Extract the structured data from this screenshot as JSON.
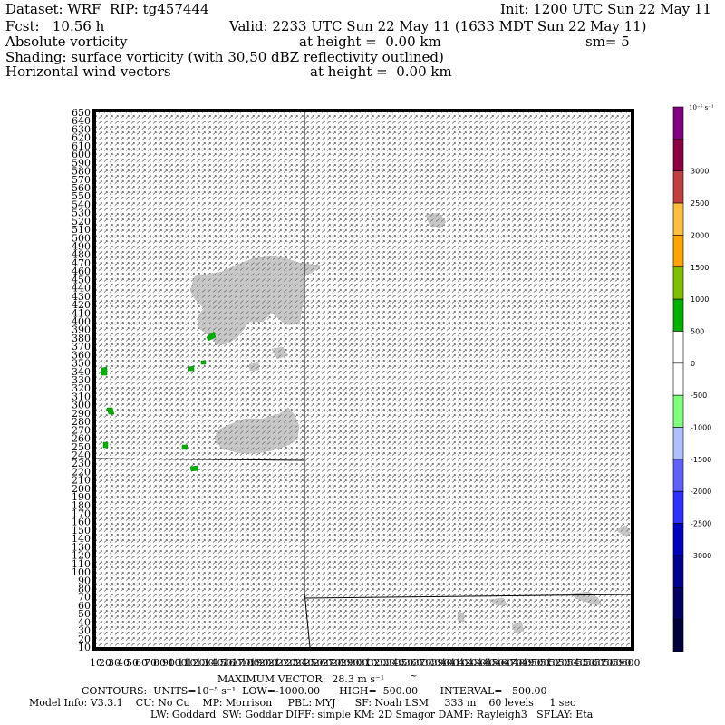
{
  "header": {
    "dataset": "Dataset: WRF  RIP: tg457444",
    "init": "Init: 1200 UTC Sun 22 May 11",
    "fcst": "Fcst:   10.56 h",
    "valid": "Valid: 2233 UTC Sun 22 May 11 (1633 MDT Sun 22 May 11)",
    "field": "Absolute vorticity",
    "field_height": "at height =  0.00 km",
    "smoothing": "sm= 5",
    "shading": "Shading: surface vorticity (with 30,50 dBZ reflectivity outlined)",
    "vectors": "Horizontal wind vectors",
    "vectors_height": "at height =  0.00 km"
  },
  "footer": {
    "max_vector": "MAXIMUM VECTOR:  28.3 m s⁻¹",
    "contours": "CONTOURS:  UNITS=10⁻⁵ s⁻¹  LOW=-1000.00      HIGH=  500.00       INTERVAL=   500.00",
    "model_info": "Model Info: V3.3.1    CU: No Cu    MP: Morrison     PBL: MYJ      SF: Noah LSM     333 m    60 levels     1 sec",
    "physics": "LW: Goddard  SW: Goddar DIFF: simple KM: 2D Smagor DAMP: Rayleigh3   SFLAY: Eta"
  },
  "colorbar": {
    "unit_label": "10⁻⁵ s⁻¹",
    "ticks": [
      "3000",
      "2500",
      "2000",
      "1500",
      "1000",
      "500",
      "0",
      "-500",
      "-1000",
      "-1500",
      "-2000",
      "-2500",
      "-3000"
    ],
    "colors": [
      "#800080",
      "#8b0040",
      "#c04040",
      "#ffc040",
      "#ffa500",
      "#80c000",
      "#00b000",
      "#ffffff",
      "#ffffff",
      "#80ff80",
      "#b0c0ff",
      "#6060ff",
      "#3030ff",
      "#0000c0",
      "#000090",
      "#000060",
      "#00003a"
    ]
  },
  "chart_data": {
    "type": "heatmap",
    "y_ticks": [
      "10",
      "20",
      "30",
      "40",
      "50",
      "60",
      "70",
      "80",
      "90",
      "100",
      "110",
      "120",
      "130",
      "140",
      "150",
      "160",
      "170",
      "180",
      "190",
      "200",
      "210",
      "220",
      "230",
      "240",
      "250",
      "260",
      "270",
      "280",
      "290",
      "300",
      "310",
      "320",
      "330",
      "340",
      "350",
      "360",
      "370",
      "380",
      "390",
      "400",
      "410",
      "420",
      "430",
      "440",
      "450",
      "460",
      "470",
      "480",
      "490",
      "500",
      "510",
      "520",
      "530",
      "540",
      "550",
      "560",
      "570",
      "580",
      "590",
      "600",
      "610",
      "620",
      "630",
      "640",
      "650"
    ],
    "x_range": [
      10,
      600
    ],
    "y_range": [
      10,
      650
    ],
    "grid_spacing": 10,
    "vorticity_regions": [
      {
        "level": "-500",
        "color": "#c8c8c8",
        "points": [
          [
            215,
            305
          ],
          [
            245,
            300
          ],
          [
            262,
            292
          ],
          [
            280,
            285
          ],
          [
            300,
            283
          ],
          [
            315,
            285
          ],
          [
            330,
            290
          ],
          [
            345,
            292
          ],
          [
            355,
            293
          ],
          [
            345,
            300
          ],
          [
            335,
            305
          ],
          [
            335,
            330
          ],
          [
            330,
            358
          ],
          [
            315,
            358
          ],
          [
            300,
            345
          ],
          [
            290,
            355
          ],
          [
            275,
            355
          ],
          [
            262,
            372
          ],
          [
            250,
            380
          ],
          [
            240,
            380
          ],
          [
            230,
            370
          ],
          [
            220,
            362
          ],
          [
            218,
            350
          ],
          [
            225,
            340
          ],
          [
            215,
            330
          ],
          [
            210,
            320
          ]
        ]
      },
      {
        "level": "-500",
        "color": "#c8c8c8",
        "points": [
          [
            250,
            470
          ],
          [
            270,
            462
          ],
          [
            290,
            462
          ],
          [
            308,
            457
          ],
          [
            318,
            450
          ],
          [
            325,
            458
          ],
          [
            330,
            470
          ],
          [
            328,
            485
          ],
          [
            316,
            492
          ],
          [
            300,
            497
          ],
          [
            285,
            500
          ],
          [
            265,
            500
          ],
          [
            245,
            495
          ],
          [
            237,
            485
          ],
          [
            240,
            475
          ]
        ]
      },
      {
        "level": "-500",
        "color": "#c8c8c8",
        "points": [
          [
            470,
            237
          ],
          [
            485,
            235
          ],
          [
            492,
            245
          ],
          [
            485,
            252
          ],
          [
            474,
            248
          ]
        ]
      },
      {
        "level": "-500",
        "color": "#c8c8c8",
        "points": [
          [
            680,
            585
          ],
          [
            690,
            580
          ],
          [
            696,
            588
          ],
          [
            690,
            592
          ]
        ]
      },
      {
        "level": "-500",
        "color": "#c8c8c8",
        "points": [
          [
            630,
            655
          ],
          [
            650,
            653
          ],
          [
            660,
            660
          ],
          [
            664,
            668
          ],
          [
            650,
            665
          ],
          [
            635,
            660
          ]
        ]
      },
      {
        "level": "-500",
        "color": "#c8c8c8",
        "points": [
          [
            540,
            662
          ],
          [
            555,
            660
          ],
          [
            560,
            668
          ],
          [
            548,
            668
          ]
        ]
      },
      {
        "level": "-500",
        "color": "#c8c8c8",
        "points": [
          [
            505,
            675
          ],
          [
            512,
            677
          ],
          [
            512,
            686
          ],
          [
            505,
            684
          ]
        ]
      },
      {
        "level": "-500",
        "color": "#c8c8c8",
        "points": [
          [
            565,
            690
          ],
          [
            575,
            686
          ],
          [
            578,
            696
          ],
          [
            568,
            698
          ]
        ]
      },
      {
        "level": "-500",
        "color": "#c8c8c8",
        "points": [
          [
            300,
            385
          ],
          [
            312,
            383
          ],
          [
            318,
            392
          ],
          [
            306,
            396
          ]
        ]
      },
      {
        "level": "-500",
        "color": "#c8c8c8",
        "points": [
          [
            275,
            402
          ],
          [
            285,
            400
          ],
          [
            286,
            408
          ],
          [
            276,
            409
          ]
        ]
      }
    ],
    "reflectivity_cells": [
      {
        "color": "#00b000",
        "points": [
          [
            228,
            372
          ],
          [
            236,
            366
          ],
          [
            238,
            372
          ],
          [
            230,
            376
          ]
        ]
      },
      {
        "color": "#00b000",
        "points": [
          [
            112,
            406
          ],
          [
            118,
            405
          ],
          [
            118,
            414
          ],
          [
            112,
            414
          ]
        ]
      },
      {
        "color": "#00b000",
        "points": [
          [
            118,
            450
          ],
          [
            124,
            450
          ],
          [
            126,
            457
          ],
          [
            120,
            457
          ]
        ]
      },
      {
        "color": "#00b000",
        "points": [
          [
            114,
            488
          ],
          [
            119,
            488
          ],
          [
            119,
            494
          ],
          [
            114,
            494
          ]
        ]
      },
      {
        "color": "#00b000",
        "points": [
          [
            201,
            491
          ],
          [
            207,
            491
          ],
          [
            207,
            496
          ],
          [
            201,
            496
          ]
        ]
      },
      {
        "color": "#00b000",
        "points": [
          [
            210,
            515
          ],
          [
            218,
            514
          ],
          [
            219,
            519
          ],
          [
            211,
            520
          ]
        ]
      },
      {
        "color": "#00b000",
        "points": [
          [
            208,
            405
          ],
          [
            214,
            404
          ],
          [
            214,
            409
          ],
          [
            208,
            409
          ]
        ]
      },
      {
        "color": "#00b000",
        "points": [
          [
            222,
            398
          ],
          [
            227,
            398
          ],
          [
            227,
            402
          ],
          [
            222,
            402
          ]
        ]
      }
    ],
    "boundaries": [
      {
        "name": "border-1",
        "points": [
          [
            336,
            124
          ],
          [
            336,
            654
          ],
          [
            342,
            714
          ]
        ]
      },
      {
        "name": "border-2",
        "points": [
          [
            104,
            506
          ],
          [
            336,
            508
          ]
        ]
      },
      {
        "name": "border-3",
        "points": [
          [
            336,
            660
          ],
          [
            696,
            656
          ]
        ]
      }
    ]
  }
}
